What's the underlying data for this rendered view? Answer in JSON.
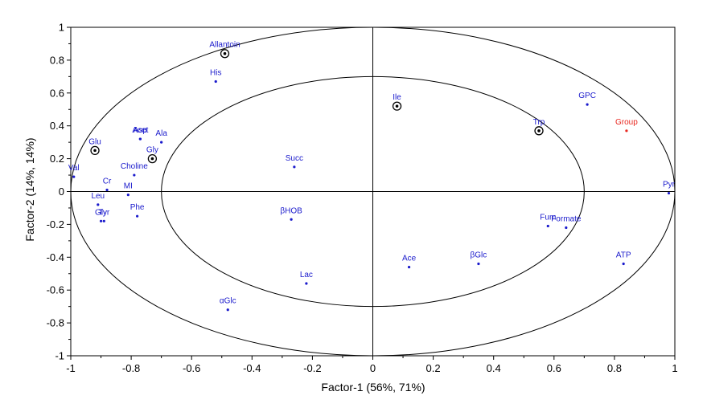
{
  "chart_data": {
    "type": "scatter",
    "title": "",
    "xlabel": "Factor-1 (56%, 71%)",
    "ylabel": "Factor-2 (14%, 14%)",
    "xlim": [
      -1,
      1
    ],
    "ylim": [
      -1,
      1
    ],
    "x_ticks": [
      "-1",
      "-0.8",
      "-0.6",
      "-0.4",
      "-0.2",
      "0",
      "0.2",
      "0.4",
      "0.6",
      "0.8",
      "1"
    ],
    "y_ticks": [
      "1",
      "0.8",
      "0.6",
      "0.4",
      "0.2",
      "0",
      "-0.2",
      "-0.4",
      "-0.6",
      "-0.8",
      "-1"
    ],
    "grid": false,
    "reference_ellipses": [
      {
        "name": "outer",
        "radius_x": 1.0,
        "radius_y": 1.0
      },
      {
        "name": "inner",
        "radius_x": 0.7,
        "radius_y": 0.7
      }
    ],
    "colors": {
      "variable": "#1a1acc",
      "group": "#e8271f",
      "axis": "#000000"
    },
    "points": [
      {
        "label": "Allantoin",
        "x": -0.49,
        "y": 0.84,
        "circled": true,
        "kind": "variable"
      },
      {
        "label": "His",
        "x": -0.52,
        "y": 0.67,
        "circled": false,
        "kind": "variable"
      },
      {
        "label": "Glu",
        "x": -0.92,
        "y": 0.25,
        "circled": true,
        "kind": "variable"
      },
      {
        "label": "Asp",
        "x": -0.77,
        "y": 0.32,
        "circled": false,
        "kind": "variable"
      },
      {
        "label": "Acet",
        "x": -0.77,
        "y": 0.32,
        "circled": false,
        "kind": "variable"
      },
      {
        "label": "Ala",
        "x": -0.7,
        "y": 0.3,
        "circled": false,
        "kind": "variable"
      },
      {
        "label": "Gly",
        "x": -0.73,
        "y": 0.2,
        "circled": true,
        "kind": "variable"
      },
      {
        "label": "Choline",
        "x": -0.79,
        "y": 0.1,
        "circled": false,
        "kind": "variable"
      },
      {
        "label": "Val",
        "x": -0.99,
        "y": 0.09,
        "circled": false,
        "kind": "variable"
      },
      {
        "label": "Cr",
        "x": -0.88,
        "y": 0.01,
        "circled": false,
        "kind": "variable"
      },
      {
        "label": "MI",
        "x": -0.81,
        "y": -0.02,
        "circled": false,
        "kind": "variable"
      },
      {
        "label": "Leu",
        "x": -0.91,
        "y": -0.08,
        "circled": false,
        "kind": "variable"
      },
      {
        "label": "Gly",
        "x": -0.9,
        "y": -0.18,
        "circled": false,
        "kind": "variable"
      },
      {
        "label": "Tyr",
        "x": -0.89,
        "y": -0.18,
        "circled": false,
        "kind": "variable"
      },
      {
        "label": "Phe",
        "x": -0.78,
        "y": -0.15,
        "circled": false,
        "kind": "variable"
      },
      {
        "label": "Succ",
        "x": -0.26,
        "y": 0.15,
        "circled": false,
        "kind": "variable"
      },
      {
        "label": "βHOB",
        "x": -0.27,
        "y": -0.17,
        "circled": false,
        "kind": "variable"
      },
      {
        "label": "Lac",
        "x": -0.22,
        "y": -0.56,
        "circled": false,
        "kind": "variable"
      },
      {
        "label": "αGlc",
        "x": -0.48,
        "y": -0.72,
        "circled": false,
        "kind": "variable"
      },
      {
        "label": "Ile",
        "x": 0.08,
        "y": 0.52,
        "circled": true,
        "kind": "variable"
      },
      {
        "label": "Trp",
        "x": 0.55,
        "y": 0.37,
        "circled": true,
        "kind": "variable"
      },
      {
        "label": "GPC",
        "x": 0.71,
        "y": 0.53,
        "circled": false,
        "kind": "variable"
      },
      {
        "label": "Group",
        "x": 0.84,
        "y": 0.37,
        "circled": false,
        "kind": "group"
      },
      {
        "label": "Pyr",
        "x": 0.98,
        "y": -0.01,
        "circled": false,
        "kind": "variable"
      },
      {
        "label": "Fum",
        "x": 0.58,
        "y": -0.21,
        "circled": false,
        "kind": "variable"
      },
      {
        "label": "Formate",
        "x": 0.64,
        "y": -0.22,
        "circled": false,
        "kind": "variable"
      },
      {
        "label": "Ace",
        "x": 0.12,
        "y": -0.46,
        "circled": false,
        "kind": "variable"
      },
      {
        "label": "βGlc",
        "x": 0.35,
        "y": -0.44,
        "circled": false,
        "kind": "variable"
      },
      {
        "label": "ATP",
        "x": 0.83,
        "y": -0.44,
        "circled": false,
        "kind": "variable"
      }
    ]
  }
}
